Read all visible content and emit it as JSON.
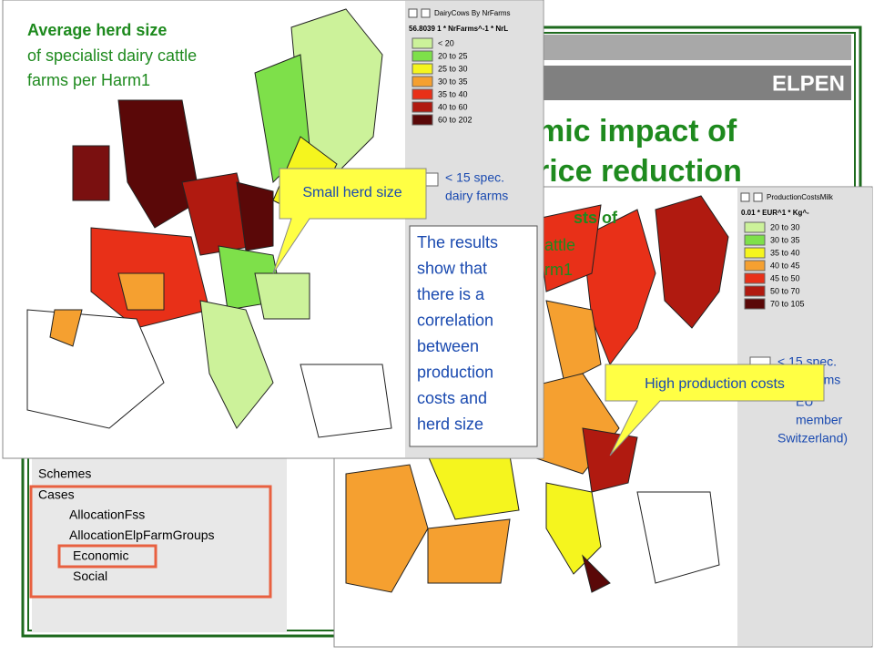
{
  "slide": {
    "brand": "ELPEN",
    "title_lines": [
      "mic impact of",
      "rice reduction"
    ],
    "tree": {
      "items": [
        "Schemes",
        "Cases"
      ],
      "sub_items": [
        "AllocationFss",
        "AllocationElpFarmGroups",
        "Economic",
        "Social"
      ]
    }
  },
  "map1": {
    "title": "Average herd size",
    "subtitle_lines": [
      "of specialist dairy cattle",
      "farms per Harm1"
    ],
    "legend_title": "DairyCows By NrFarms",
    "legend_formula": "56.8039  1 * NrFarms^-1 * NrL",
    "legend_items": [
      {
        "label": "< 20",
        "color": "#ccf29a"
      },
      {
        "label": "20 to 25",
        "color": "#7ee04a"
      },
      {
        "label": "25 to 30",
        "color": "#f5f51e"
      },
      {
        "label": "30 to 35",
        "color": "#f5a030"
      },
      {
        "label": "35 to 40",
        "color": "#e83018"
      },
      {
        "label": "40 to 60",
        "color": "#b01a10"
      },
      {
        "label": "60 to 202",
        "color": "#5a0808"
      }
    ],
    "no_data_lines": [
      "< 15 spec.",
      "dairy farms"
    ],
    "callout": "Small herd size",
    "note_lines": [
      "The results",
      "show that",
      "there is a",
      "correlation",
      "between",
      "production",
      "costs and",
      "herd size"
    ]
  },
  "map2": {
    "title_fragments": [
      "sts of",
      "attle",
      "rm1"
    ],
    "legend_title": "ProductionCostsMilk",
    "legend_formula": "0.01 * EUR^1 * Kg^-",
    "legend_items": [
      {
        "label": "20 to 30",
        "color": "#ccf29a"
      },
      {
        "label": "30 to 35",
        "color": "#7ee04a"
      },
      {
        "label": "35 to 40",
        "color": "#f5f51e"
      },
      {
        "label": "40 to 45",
        "color": "#f5a030"
      },
      {
        "label": "45 to 50",
        "color": "#e83018"
      },
      {
        "label": "50 to 70",
        "color": "#b01a10"
      },
      {
        "label": "70 to 105",
        "color": "#5a0808"
      }
    ],
    "no_data_lines": [
      "< 15 spec.",
      "dairy farms"
    ],
    "extra_lines": [
      "EU",
      "member",
      "Switzerland)"
    ],
    "callout": "High production costs"
  }
}
